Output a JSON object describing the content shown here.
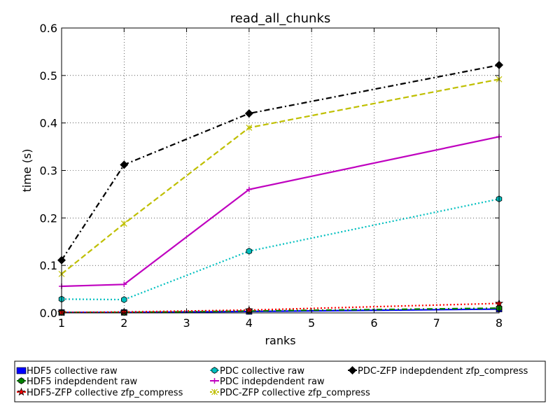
{
  "chart_data": {
    "type": "line",
    "title": "read_all_chunks",
    "xlabel": "ranks",
    "ylabel": "time (s)",
    "xlim": [
      1,
      8
    ],
    "ylim": [
      0,
      0.6
    ],
    "xticks": [
      1,
      2,
      3,
      4,
      5,
      6,
      7,
      8
    ],
    "yticks": [
      0.0,
      0.1,
      0.2,
      0.3,
      0.4,
      0.5,
      0.6
    ],
    "ytick_labels": [
      "0.0",
      "0.1",
      "0.2",
      "0.3",
      "0.4",
      "0.5",
      "0.6"
    ],
    "grid": true,
    "legend_placement": "below chart",
    "x": [
      1,
      2,
      4,
      8
    ],
    "series": [
      {
        "name": "HDF5 collective raw",
        "values": [
          0.001,
          0.001,
          0.003,
          0.008
        ],
        "color": "#0000ff",
        "linestyle": "solid",
        "marker": "square"
      },
      {
        "name": "HDF5 indepdendent raw",
        "values": [
          0.001,
          0.001,
          0.004,
          0.01
        ],
        "color": "#008000",
        "linestyle": "dashdot",
        "marker": "hexagon"
      },
      {
        "name": "HDF5-ZFP collective zfp_compress",
        "values": [
          0.001,
          0.002,
          0.006,
          0.02
        ],
        "color": "#ff0000",
        "linestyle": "dotted",
        "marker": "star"
      },
      {
        "name": "PDC collective raw",
        "values": [
          0.029,
          0.028,
          0.13,
          0.24
        ],
        "color": "#00bfbf",
        "linestyle": "dotted",
        "marker": "hexagon"
      },
      {
        "name": "PDC indepdendent raw",
        "values": [
          0.056,
          0.06,
          0.26,
          0.371
        ],
        "color": "#bf00bf",
        "linestyle": "solid",
        "marker": "plus"
      },
      {
        "name": "PDC-ZFP collective zfp_compress",
        "values": [
          0.082,
          0.188,
          0.39,
          0.492
        ],
        "color": "#bfbf00",
        "linestyle": "dashed",
        "marker": "x"
      },
      {
        "name": "PDC-ZFP indepdendent zfp_compress",
        "values": [
          0.111,
          0.312,
          0.42,
          0.522
        ],
        "color": "#000000",
        "linestyle": "dashdot",
        "marker": "diamond"
      }
    ]
  }
}
